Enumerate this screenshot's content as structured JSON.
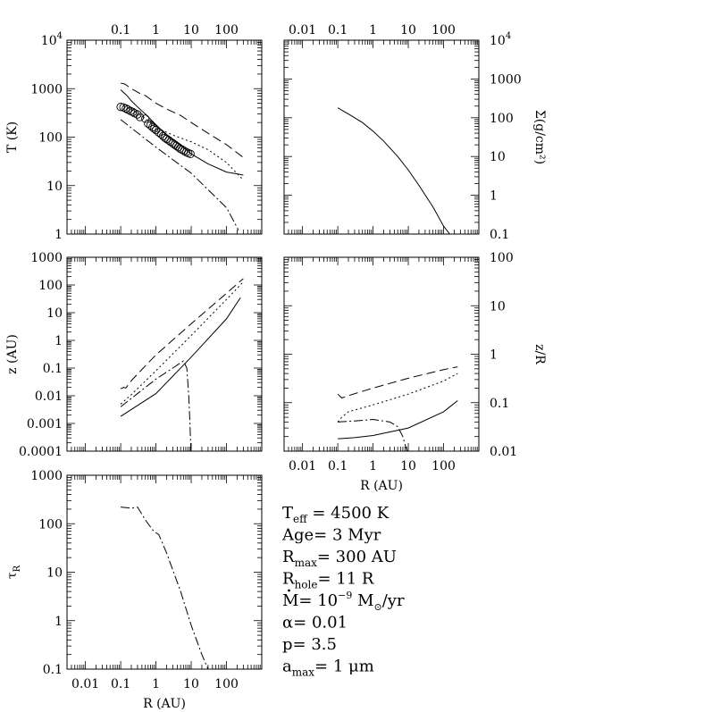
{
  "chart_data": [
    {
      "id": "T",
      "type": "line",
      "xscale": "log",
      "yscale": "log",
      "xlim": [
        0.003,
        1000
      ],
      "ylim": [
        1,
        10000
      ],
      "xlabel": "",
      "ylabel": "T (K)",
      "ylabel_side": "left",
      "top_tick_labels": [
        {
          "v": 0.1,
          "t": "0.1"
        },
        {
          "v": 1,
          "t": "1"
        },
        {
          "v": 10,
          "t": "10"
        },
        {
          "v": 100,
          "t": "100"
        }
      ],
      "left_tick_labels": [
        {
          "v": 1,
          "t": "1"
        },
        {
          "v": 10,
          "t": "10"
        },
        {
          "v": 100,
          "t": "100"
        },
        {
          "v": 1000,
          "t": "1000"
        },
        {
          "v": 10000,
          "t": "10",
          "sup": "4"
        }
      ],
      "series": [
        {
          "style": "dashed",
          "points": [
            [
              0.1,
              1300
            ],
            [
              0.13,
              1250
            ],
            [
              0.2,
              1000
            ],
            [
              0.35,
              800
            ],
            [
              0.5,
              720
            ],
            [
              1,
              500
            ],
            [
              2,
              380
            ],
            [
              5,
              280
            ],
            [
              10,
              200
            ],
            [
              30,
              120
            ],
            [
              100,
              70
            ],
            [
              300,
              38
            ]
          ]
        },
        {
          "style": "solid",
          "points": [
            [
              0.1,
              950
            ],
            [
              0.15,
              720
            ],
            [
              0.2,
              560
            ],
            [
              0.3,
              420
            ],
            [
              0.5,
              300
            ],
            [
              1,
              180
            ],
            [
              2,
              110
            ],
            [
              5,
              68
            ],
            [
              10,
              45
            ],
            [
              30,
              28
            ],
            [
              100,
              19
            ],
            [
              200,
              17.5
            ],
            [
              300,
              16.5
            ]
          ]
        },
        {
          "style": "dotted",
          "points": [
            [
              0.12,
              440
            ],
            [
              0.2,
              380
            ],
            [
              0.5,
              240
            ],
            [
              1,
              160
            ],
            [
              3,
              110
            ],
            [
              10,
              80
            ],
            [
              30,
              55
            ],
            [
              100,
              30
            ],
            [
              300,
              13
            ]
          ]
        },
        {
          "style": "dashdot",
          "points": [
            [
              0.1,
              230
            ],
            [
              1,
              62
            ],
            [
              10,
              18
            ],
            [
              100,
              3.5
            ],
            [
              220,
              1.2
            ]
          ]
        },
        {
          "style": "markers",
          "points": [
            [
              0.1,
              420
            ],
            [
              0.12,
              410
            ],
            [
              0.14,
              390
            ],
            [
              0.16,
              370
            ],
            [
              0.19,
              345
            ],
            [
              0.22,
              330
            ],
            [
              0.25,
              310
            ],
            [
              0.3,
              295
            ],
            [
              0.35,
              260
            ],
            [
              0.5,
              240
            ],
            [
              0.6,
              190
            ],
            [
              0.7,
              175
            ],
            [
              0.8,
              160
            ],
            [
              0.9,
              150
            ],
            [
              1.0,
              140
            ],
            [
              1.2,
              125
            ],
            [
              1.4,
              115
            ],
            [
              1.6,
              105
            ],
            [
              1.8,
              97
            ],
            [
              2.0,
              92
            ],
            [
              2.3,
              86
            ],
            [
              2.6,
              80
            ],
            [
              3.0,
              75
            ],
            [
              3.4,
              70
            ],
            [
              3.8,
              66
            ],
            [
              4.3,
              62
            ],
            [
              4.8,
              58
            ],
            [
              5.5,
              55
            ],
            [
              6.3,
              52
            ],
            [
              7.2,
              49
            ],
            [
              8.2,
              47
            ],
            [
              9.5,
              45
            ]
          ]
        }
      ]
    },
    {
      "id": "Sigma",
      "type": "line",
      "xscale": "log",
      "yscale": "log",
      "xlim": [
        0.003,
        1000
      ],
      "ylim": [
        0.1,
        10000
      ],
      "xlabel": "",
      "ylabel": "Σ(g/cm²)",
      "ylabel_side": "right",
      "top_tick_labels": [
        {
          "v": 0.01,
          "t": "0.01"
        },
        {
          "v": 0.1,
          "t": "0.1"
        },
        {
          "v": 1,
          "t": "1"
        },
        {
          "v": 10,
          "t": "10"
        },
        {
          "v": 100,
          "t": "100"
        }
      ],
      "right_tick_labels": [
        {
          "v": 0.1,
          "t": "0.1"
        },
        {
          "v": 1,
          "t": "1"
        },
        {
          "v": 10,
          "t": "10"
        },
        {
          "v": 100,
          "t": "100"
        },
        {
          "v": 1000,
          "t": "1000"
        },
        {
          "v": 10000,
          "t": "10",
          "sup": "4"
        }
      ],
      "series": [
        {
          "style": "solid",
          "points": [
            [
              0.1,
              180
            ],
            [
              0.2,
              125
            ],
            [
              0.5,
              75
            ],
            [
              1,
              45
            ],
            [
              2,
              25
            ],
            [
              5,
              10
            ],
            [
              10,
              4.5
            ],
            [
              20,
              1.8
            ],
            [
              50,
              0.5
            ],
            [
              100,
              0.16
            ],
            [
              150,
              0.1
            ]
          ]
        }
      ]
    },
    {
      "id": "z",
      "type": "line",
      "xscale": "log",
      "yscale": "log",
      "xlim": [
        0.003,
        1000
      ],
      "ylim": [
        0.0001,
        1000
      ],
      "xlabel": "",
      "ylabel": "z (AU)",
      "ylabel_side": "left",
      "left_tick_labels": [
        {
          "v": 0.0001,
          "t": "0.0001"
        },
        {
          "v": 0.001,
          "t": "0.001"
        },
        {
          "v": 0.01,
          "t": "0.01"
        },
        {
          "v": 0.1,
          "t": "0.1"
        },
        {
          "v": 1,
          "t": "1"
        },
        {
          "v": 10,
          "t": "10"
        },
        {
          "v": 100,
          "t": "100"
        },
        {
          "v": 1000,
          "t": "1000"
        }
      ],
      "series": [
        {
          "style": "dashed",
          "points": [
            [
              0.1,
              0.018
            ],
            [
              0.12,
              0.02
            ],
            [
              0.14,
              0.019
            ],
            [
              0.2,
              0.035
            ],
            [
              0.5,
              0.12
            ],
            [
              1,
              0.3
            ],
            [
              10,
              4
            ],
            [
              100,
              50
            ],
            [
              300,
              170
            ]
          ]
        },
        {
          "style": "dotted",
          "points": [
            [
              0.1,
              0.005
            ],
            [
              0.2,
              0.011
            ],
            [
              1,
              0.08
            ],
            [
              10,
              1.5
            ],
            [
              100,
              30
            ],
            [
              300,
              130
            ]
          ]
        },
        {
          "style": "solid",
          "points": [
            [
              0.1,
              0.0018
            ],
            [
              1,
              0.012
            ],
            [
              10,
              0.25
            ],
            [
              100,
              6
            ],
            [
              250,
              35
            ]
          ]
        },
        {
          "style": "dashdot",
          "points": [
            [
              0.1,
              0.004
            ],
            [
              0.3,
              0.012
            ],
            [
              1,
              0.04
            ],
            [
              3,
              0.1
            ],
            [
              6,
              0.18
            ],
            [
              7.5,
              0.1
            ],
            [
              8.5,
              0.01
            ],
            [
              9.2,
              0.001
            ],
            [
              9.8,
              0.0001
            ]
          ]
        }
      ]
    },
    {
      "id": "zR",
      "type": "line",
      "xscale": "log",
      "yscale": "log",
      "xlim": [
        0.003,
        1000
      ],
      "ylim": [
        0.01,
        100
      ],
      "xlabel": "R (AU)",
      "ylabel": "z/R",
      "ylabel_side": "right",
      "bottom_tick_labels": [
        {
          "v": 0.01,
          "t": "0.01"
        },
        {
          "v": 0.1,
          "t": "0.1"
        },
        {
          "v": 1,
          "t": "1"
        },
        {
          "v": 10,
          "t": "10"
        },
        {
          "v": 100,
          "t": "100"
        }
      ],
      "right_tick_labels": [
        {
          "v": 0.01,
          "t": "0.01"
        },
        {
          "v": 0.1,
          "t": "0.1"
        },
        {
          "v": 1,
          "t": "1"
        },
        {
          "v": 10,
          "t": "10"
        },
        {
          "v": 100,
          "t": "100"
        }
      ],
      "series": [
        {
          "style": "dashed",
          "points": [
            [
              0.1,
              0.15
            ],
            [
              0.13,
              0.125
            ],
            [
              0.2,
              0.14
            ],
            [
              1,
              0.2
            ],
            [
              10,
              0.32
            ],
            [
              100,
              0.48
            ],
            [
              250,
              0.55
            ]
          ]
        },
        {
          "style": "dotted",
          "points": [
            [
              0.1,
              0.04
            ],
            [
              0.13,
              0.05
            ],
            [
              0.2,
              0.065
            ],
            [
              1,
              0.09
            ],
            [
              10,
              0.15
            ],
            [
              100,
              0.28
            ],
            [
              250,
              0.4
            ]
          ]
        },
        {
          "style": "solid",
          "points": [
            [
              0.1,
              0.018
            ],
            [
              0.3,
              0.019
            ],
            [
              1,
              0.021
            ],
            [
              10,
              0.03
            ],
            [
              100,
              0.065
            ],
            [
              250,
              0.11
            ]
          ]
        },
        {
          "style": "dashdot",
          "points": [
            [
              0.1,
              0.04
            ],
            [
              0.3,
              0.042
            ],
            [
              1,
              0.045
            ],
            [
              3,
              0.04
            ],
            [
              5,
              0.032
            ],
            [
              7,
              0.02
            ],
            [
              8.5,
              0.012
            ],
            [
              9.5,
              0.01
            ]
          ]
        }
      ]
    },
    {
      "id": "tau",
      "type": "line",
      "xscale": "log",
      "yscale": "log",
      "xlim": [
        0.003,
        1000
      ],
      "ylim": [
        0.1,
        1000
      ],
      "xlabel": "R (AU)",
      "ylabel": "τ",
      "ylabel_sub": "R",
      "ylabel_side": "left",
      "bottom_tick_labels": [
        {
          "v": 0.01,
          "t": "0.01"
        },
        {
          "v": 0.1,
          "t": "0.1"
        },
        {
          "v": 1,
          "t": "1"
        },
        {
          "v": 10,
          "t": "10"
        },
        {
          "v": 100,
          "t": "100"
        }
      ],
      "left_tick_labels": [
        {
          "v": 0.1,
          "t": "0.1"
        },
        {
          "v": 1,
          "t": "1"
        },
        {
          "v": 10,
          "t": "10"
        },
        {
          "v": 100,
          "t": "100"
        },
        {
          "v": 1000,
          "t": "1000"
        }
      ],
      "series": [
        {
          "style": "dashdot",
          "points": [
            [
              0.1,
              220
            ],
            [
              0.2,
              210
            ],
            [
              0.3,
              220
            ],
            [
              0.5,
              120
            ],
            [
              0.8,
              75
            ],
            [
              1,
              65
            ],
            [
              1.2,
              60
            ],
            [
              2,
              25
            ],
            [
              5,
              4
            ],
            [
              10,
              0.8
            ],
            [
              20,
              0.2
            ],
            [
              30,
              0.1
            ]
          ]
        }
      ]
    }
  ],
  "params": [
    {
      "pre": "T",
      "sub": "eff",
      "post": " =  4500   K"
    },
    {
      "pre": "Age=  3    Myr"
    },
    {
      "pre": "R",
      "sub": "max",
      "post": "=  300   AU"
    },
    {
      "pre": "R",
      "sub": "hole",
      "post": "=  11  R"
    },
    {
      "pre": "M=  10",
      "sup": "−9",
      "post": " M",
      "sub2": "⊙",
      "post2": "/yr"
    },
    {
      "pre": "α=  0.01"
    },
    {
      "pre": "p=  3.5"
    },
    {
      "pre": "a",
      "sub": "max",
      "post": "=  1  μm"
    }
  ]
}
